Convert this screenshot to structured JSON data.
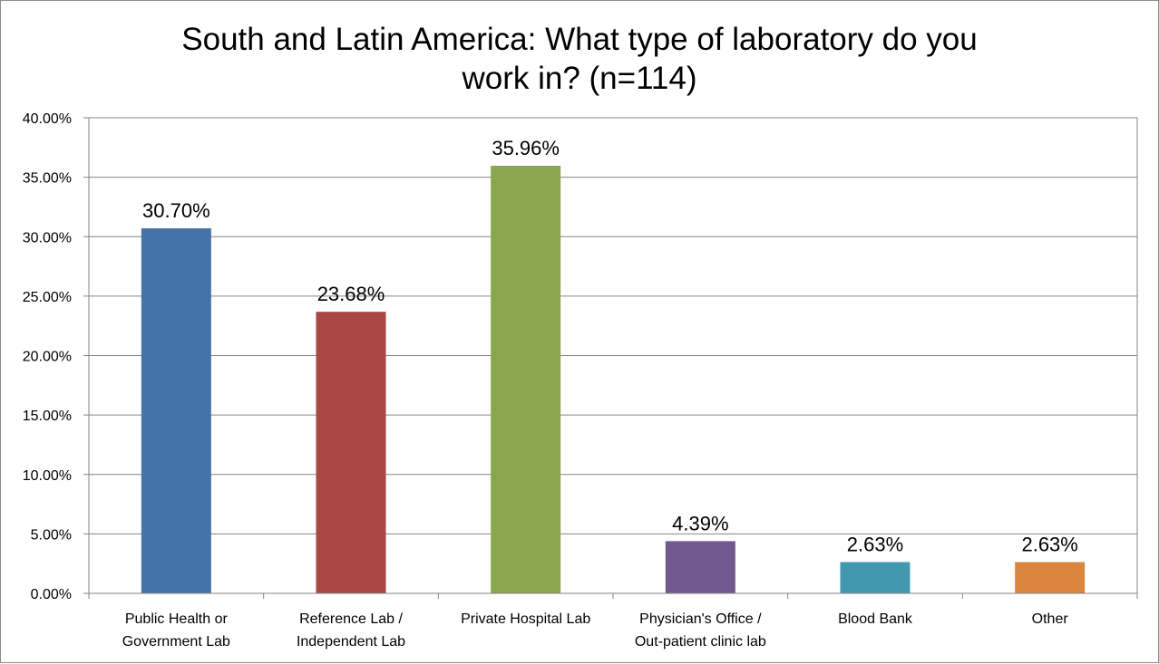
{
  "chart_data": {
    "type": "bar",
    "title_lines": [
      "South and Latin America: What type of laboratory do you",
      "work in? (n=114)"
    ],
    "categories": [
      [
        "Public Health or",
        "Government Lab"
      ],
      [
        "Reference Lab /",
        "Independent Lab"
      ],
      [
        "Private Hospital Lab"
      ],
      [
        "Physician's Office /",
        "Out-patient clinic lab"
      ],
      [
        "Blood Bank"
      ],
      [
        "Other"
      ]
    ],
    "values": [
      30.7,
      23.68,
      35.96,
      4.39,
      2.63,
      2.63
    ],
    "data_labels": [
      "30.70%",
      "23.68%",
      "35.96%",
      "4.39%",
      "2.63%",
      "2.63%"
    ],
    "colors": [
      "#4572A7",
      "#AA4643",
      "#89A54E",
      "#71588F",
      "#4198AF",
      "#DB843D"
    ],
    "y_ticks": [
      "0.00%",
      "5.00%",
      "10.00%",
      "15.00%",
      "20.00%",
      "25.00%",
      "30.00%",
      "35.00%",
      "40.00%"
    ],
    "ylim": [
      0,
      40
    ],
    "grid": true,
    "legend": "none",
    "xlabel": "",
    "ylabel": ""
  }
}
